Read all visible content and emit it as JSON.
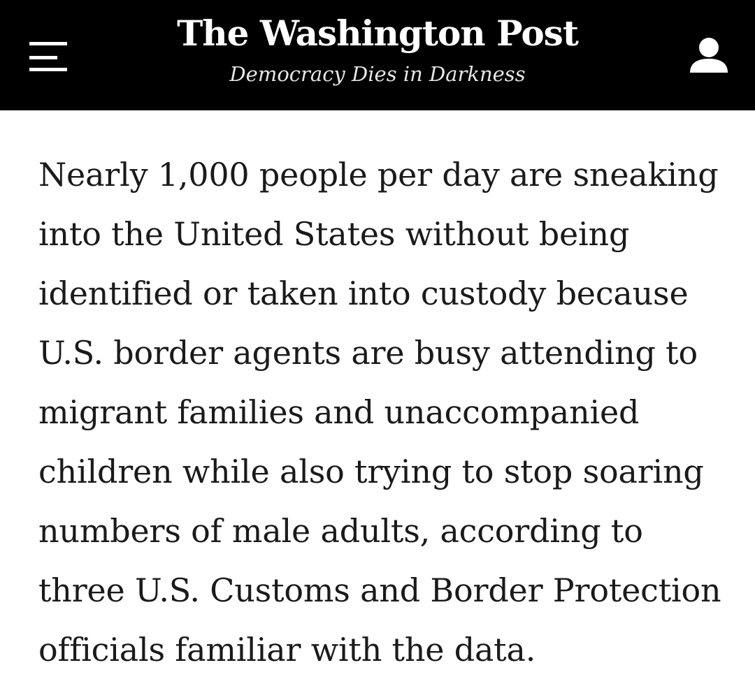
{
  "header": {
    "logo_text": "The Washington Post",
    "tagline": "Democracy Dies in Darkness",
    "menu_icon": "hamburger-menu-icon",
    "account_icon": "user-account-icon",
    "background_color": "#000000",
    "text_color": "#ffffff"
  },
  "article": {
    "lines": [
      "Nearly 1,000 people per day are sneaking",
      "into the United States without being",
      "identified or taken into custody because",
      "U.S. border agents are busy attending to",
      "migrant families and unaccompanied",
      "children while also trying to stop soaring",
      "numbers of male adults, according to",
      "three U.S. Customs and Border Protection",
      "officials familiar with the data."
    ],
    "text_color": "#1a1a1a"
  }
}
